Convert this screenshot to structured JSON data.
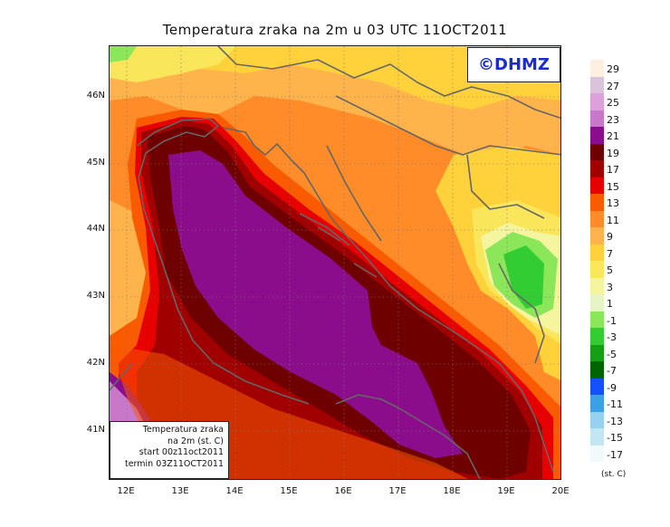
{
  "title": "Temperatura zraka na 2m u 03 UTC 11OCT2011",
  "logo": "©DHMZ",
  "info": {
    "line1": "Temperatura zraka",
    "line2": "na 2m (st. C)",
    "line3": "start 00z11oct2011",
    "line4": "termin 03Z11OCT2011"
  },
  "axes": {
    "lat_labels": [
      "46N",
      "45N",
      "44N",
      "43N",
      "42N",
      "41N"
    ],
    "lon_labels": [
      "12E",
      "13E",
      "14E",
      "15E",
      "16E",
      "17E",
      "18E",
      "19E",
      "20E"
    ]
  },
  "legend": {
    "units": "(st. C)",
    "levels": [
      "29",
      "27",
      "25",
      "23",
      "21",
      "19",
      "17",
      "15",
      "13",
      "11",
      "9",
      "7",
      "5",
      "3",
      "1",
      "-1",
      "-3",
      "-5",
      "-7",
      "-9",
      "-11",
      "-13",
      "-15",
      "-17"
    ],
    "colors": [
      "#fdf0e0",
      "#dcc3dc",
      "#dca0dc",
      "#c878c8",
      "#8c0d8c",
      "#6e0000",
      "#a00000",
      "#e60000",
      "#fa5a00",
      "#ff8c28",
      "#ffb44b",
      "#ffd23c",
      "#fae65a",
      "#f5f5a0",
      "#e6f5c3",
      "#8ce65a",
      "#32cd32",
      "#14a014",
      "#006400",
      "#1450ff",
      "#3ca0e6",
      "#96d2f0",
      "#c3e6f5",
      "#f0fafd"
    ]
  }
}
